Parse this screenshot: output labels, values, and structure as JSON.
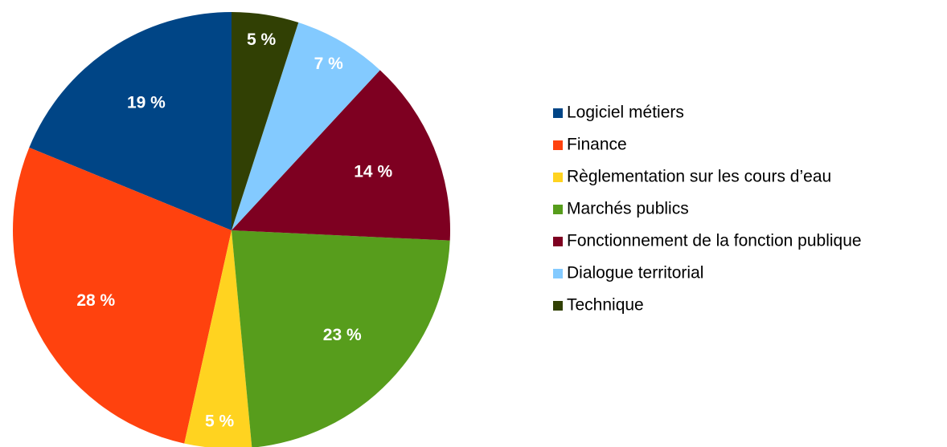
{
  "chart_data": {
    "type": "pie",
    "categories": [
      "Logiciel métiers",
      "Finance",
      "Règlementation sur les cours d’eau",
      "Marchés publics",
      "Fonctionnement de la fonction publique",
      "Dialogue territorial",
      "Technique"
    ],
    "values": [
      19,
      28,
      5,
      23,
      14,
      7,
      5
    ],
    "value_labels": [
      "19 %",
      "28 %",
      "5 %",
      "23 %",
      "14 %",
      "7 %",
      "5 %"
    ],
    "colors": [
      "#004586",
      "#ff420e",
      "#ffd320",
      "#579d1c",
      "#7e0021",
      "#83caff",
      "#314004"
    ],
    "legend": "right"
  }
}
